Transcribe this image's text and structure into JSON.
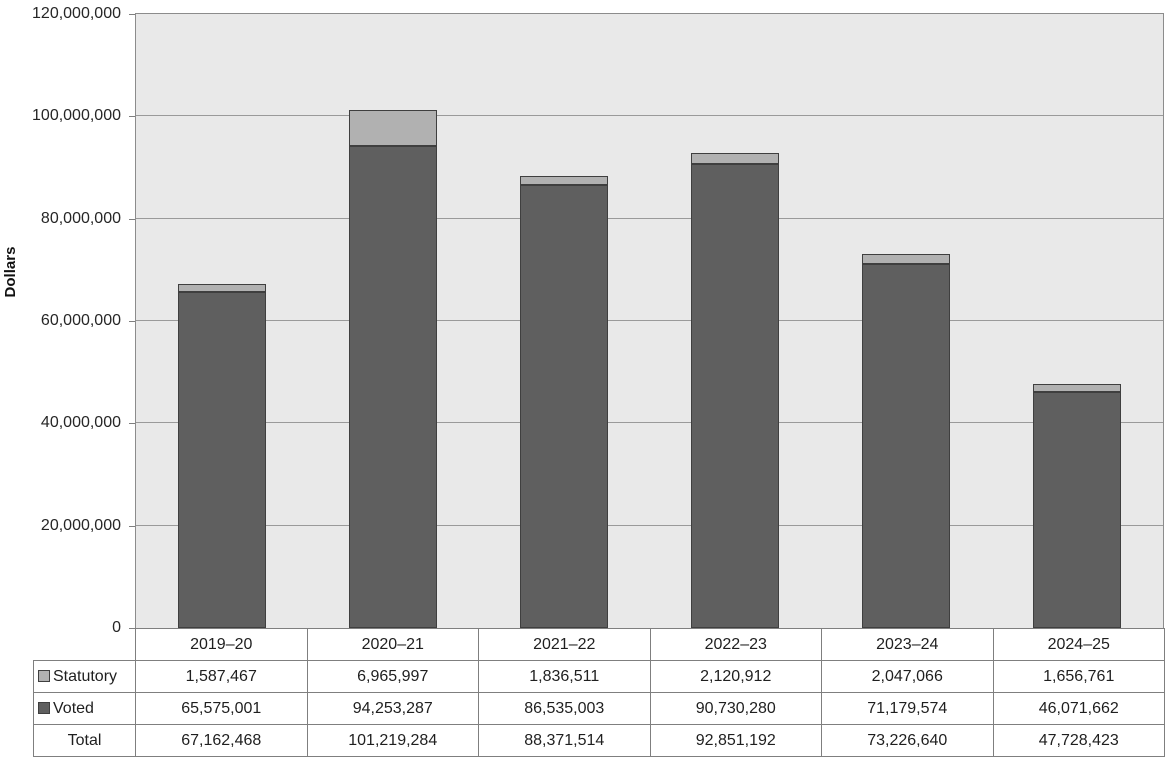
{
  "chart_data": {
    "type": "bar",
    "stacked": true,
    "ylabel": "Dollars",
    "xlabel": "",
    "categories": [
      "2019–20",
      "2020–21",
      "2021–22",
      "2022–23",
      "2023–24",
      "2024–25"
    ],
    "series": [
      {
        "name": "Statutory",
        "color": "#b1b1b1",
        "values": [
          1587467,
          6965997,
          1836511,
          2120912,
          2047066,
          1656761
        ]
      },
      {
        "name": "Voted",
        "color": "#5f5f5f",
        "values": [
          65575001,
          94253287,
          86535003,
          90730280,
          71179574,
          46071662
        ]
      }
    ],
    "stack_order_bottom_to_top": [
      "Voted",
      "Statutory"
    ],
    "totals": {
      "label": "Total",
      "values": [
        67162468,
        101219284,
        88371514,
        92851192,
        73226640,
        47728423
      ]
    },
    "ylim": [
      0,
      120000000
    ],
    "y_tick_values": [
      0,
      20000000,
      40000000,
      60000000,
      80000000,
      100000000,
      120000000
    ],
    "y_tick_labels": [
      "0",
      "20,000,000",
      "40,000,000",
      "60,000,000",
      "80,000,000",
      "100,000,000",
      "120,000,000"
    ],
    "grid": "horizontal",
    "legend_position": "table-left-column",
    "colors": {
      "plot_background": "#e9e9e9",
      "gridline": "#9a9a9a",
      "bar_border": "#3f3f3f",
      "axis_border": "#8c8c8c",
      "table_border": "#7f7f7f",
      "text": "#1f1f1f"
    }
  }
}
